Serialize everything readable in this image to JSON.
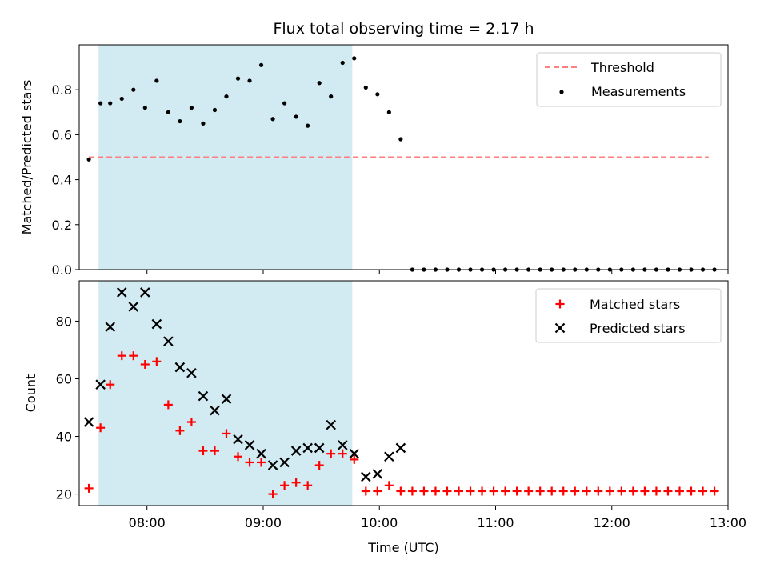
{
  "colors": {
    "span": "#add8e6",
    "threshold": "#ff7f7f",
    "measurement": "#000000",
    "matched": "#ff0000",
    "predicted": "#000000"
  },
  "chart_data": [
    {
      "type": "scatter",
      "title": "Flux total observing time = 2.17 h",
      "xlabel": "",
      "ylabel": "Matched/Predicted stars",
      "xlim": [
        "07:25",
        "13:00"
      ],
      "ylim": [
        0,
        1.0
      ],
      "yticks": [
        0.0,
        0.2,
        0.4,
        0.6,
        0.8
      ],
      "ytick_labels": [
        "0.0",
        "0.2",
        "0.4",
        "0.6",
        "0.8"
      ],
      "legend_position": "top-right",
      "highlight_span": [
        "07:35",
        "09:46"
      ],
      "threshold": {
        "name": "Threshold",
        "value": 0.5,
        "x_range": [
          "07:30",
          "12:50"
        ],
        "style": "dashed"
      },
      "series": [
        {
          "name": "Measurements",
          "marker": "dot",
          "x": [
            "07:30",
            "07:36",
            "07:41",
            "07:47",
            "07:53",
            "07:59",
            "08:05",
            "08:11",
            "08:17",
            "08:23",
            "08:29",
            "08:35",
            "08:41",
            "08:47",
            "08:53",
            "08:59",
            "09:05",
            "09:11",
            "09:17",
            "09:23",
            "09:29",
            "09:35",
            "09:41",
            "09:47",
            "09:53",
            "09:59",
            "10:05",
            "10:11",
            "10:17",
            "10:23",
            "10:29",
            "10:35",
            "10:41",
            "10:47",
            "10:53",
            "10:59",
            "11:05",
            "11:11",
            "11:17",
            "11:23",
            "11:29",
            "11:35",
            "11:41",
            "11:47",
            "11:53",
            "11:59",
            "12:05",
            "12:11",
            "12:17",
            "12:23",
            "12:29",
            "12:35",
            "12:41",
            "12:47",
            "12:53"
          ],
          "y": [
            0.49,
            0.74,
            0.74,
            0.76,
            0.8,
            0.72,
            0.84,
            0.7,
            0.66,
            0.72,
            0.65,
            0.71,
            0.77,
            0.85,
            0.84,
            0.91,
            0.67,
            0.74,
            0.68,
            0.64,
            0.83,
            0.77,
            0.92,
            0.94,
            0.81,
            0.78,
            0.7,
            0.58,
            0,
            0,
            0,
            0,
            0,
            0,
            0,
            0,
            0,
            0,
            0,
            0,
            0,
            0,
            0,
            0,
            0,
            0,
            0,
            0,
            0,
            0,
            0,
            0,
            0,
            0,
            0
          ]
        }
      ]
    },
    {
      "type": "scatter",
      "title": "",
      "xlabel": "Time (UTC)",
      "ylabel": "Count",
      "xlim": [
        "07:25",
        "13:00"
      ],
      "ylim": [
        16,
        94
      ],
      "yticks": [
        20,
        40,
        60,
        80
      ],
      "ytick_labels": [
        "20",
        "40",
        "60",
        "80"
      ],
      "xticks": [
        "08:00",
        "09:00",
        "10:00",
        "11:00",
        "12:00",
        "13:00"
      ],
      "xtick_labels": [
        "08:00",
        "09:00",
        "10:00",
        "11:00",
        "12:00",
        "13:00"
      ],
      "legend_position": "top-right",
      "highlight_span": [
        "07:35",
        "09:46"
      ],
      "series": [
        {
          "name": "Matched stars",
          "marker": "plus",
          "x": [
            "07:30",
            "07:36",
            "07:41",
            "07:47",
            "07:53",
            "07:59",
            "08:05",
            "08:11",
            "08:17",
            "08:23",
            "08:29",
            "08:35",
            "08:41",
            "08:47",
            "08:53",
            "08:59",
            "09:05",
            "09:11",
            "09:17",
            "09:23",
            "09:29",
            "09:35",
            "09:41",
            "09:47",
            "09:53",
            "09:59",
            "10:05",
            "10:11",
            "10:17",
            "10:23",
            "10:29",
            "10:35",
            "10:41",
            "10:47",
            "10:53",
            "10:59",
            "11:05",
            "11:11",
            "11:17",
            "11:23",
            "11:29",
            "11:35",
            "11:41",
            "11:47",
            "11:53",
            "11:59",
            "12:05",
            "12:11",
            "12:17",
            "12:23",
            "12:29",
            "12:35",
            "12:41",
            "12:47",
            "12:53"
          ],
          "y": [
            22,
            43,
            58,
            68,
            68,
            65,
            66,
            51,
            42,
            45,
            35,
            35,
            41,
            33,
            31,
            31,
            20,
            23,
            24,
            23,
            30,
            34,
            34,
            32,
            21,
            21,
            23,
            21,
            21,
            21,
            21,
            21,
            21,
            21,
            21,
            21,
            21,
            21,
            21,
            21,
            21,
            21,
            21,
            21,
            21,
            21,
            21,
            21,
            21,
            21,
            21,
            21,
            21,
            21,
            21
          ]
        },
        {
          "name": "Predicted stars",
          "marker": "x",
          "x": [
            "07:30",
            "07:36",
            "07:41",
            "07:47",
            "07:53",
            "07:59",
            "08:05",
            "08:11",
            "08:17",
            "08:23",
            "08:29",
            "08:35",
            "08:41",
            "08:47",
            "08:53",
            "08:59",
            "09:05",
            "09:11",
            "09:17",
            "09:23",
            "09:29",
            "09:35",
            "09:41",
            "09:47",
            "09:53",
            "09:59",
            "10:05",
            "10:11"
          ],
          "y": [
            45,
            58,
            78,
            90,
            85,
            90,
            79,
            73,
            64,
            62,
            54,
            49,
            53,
            39,
            37,
            34,
            30,
            31,
            35,
            36,
            36,
            44,
            37,
            34,
            26,
            27,
            33,
            36
          ]
        }
      ]
    }
  ]
}
